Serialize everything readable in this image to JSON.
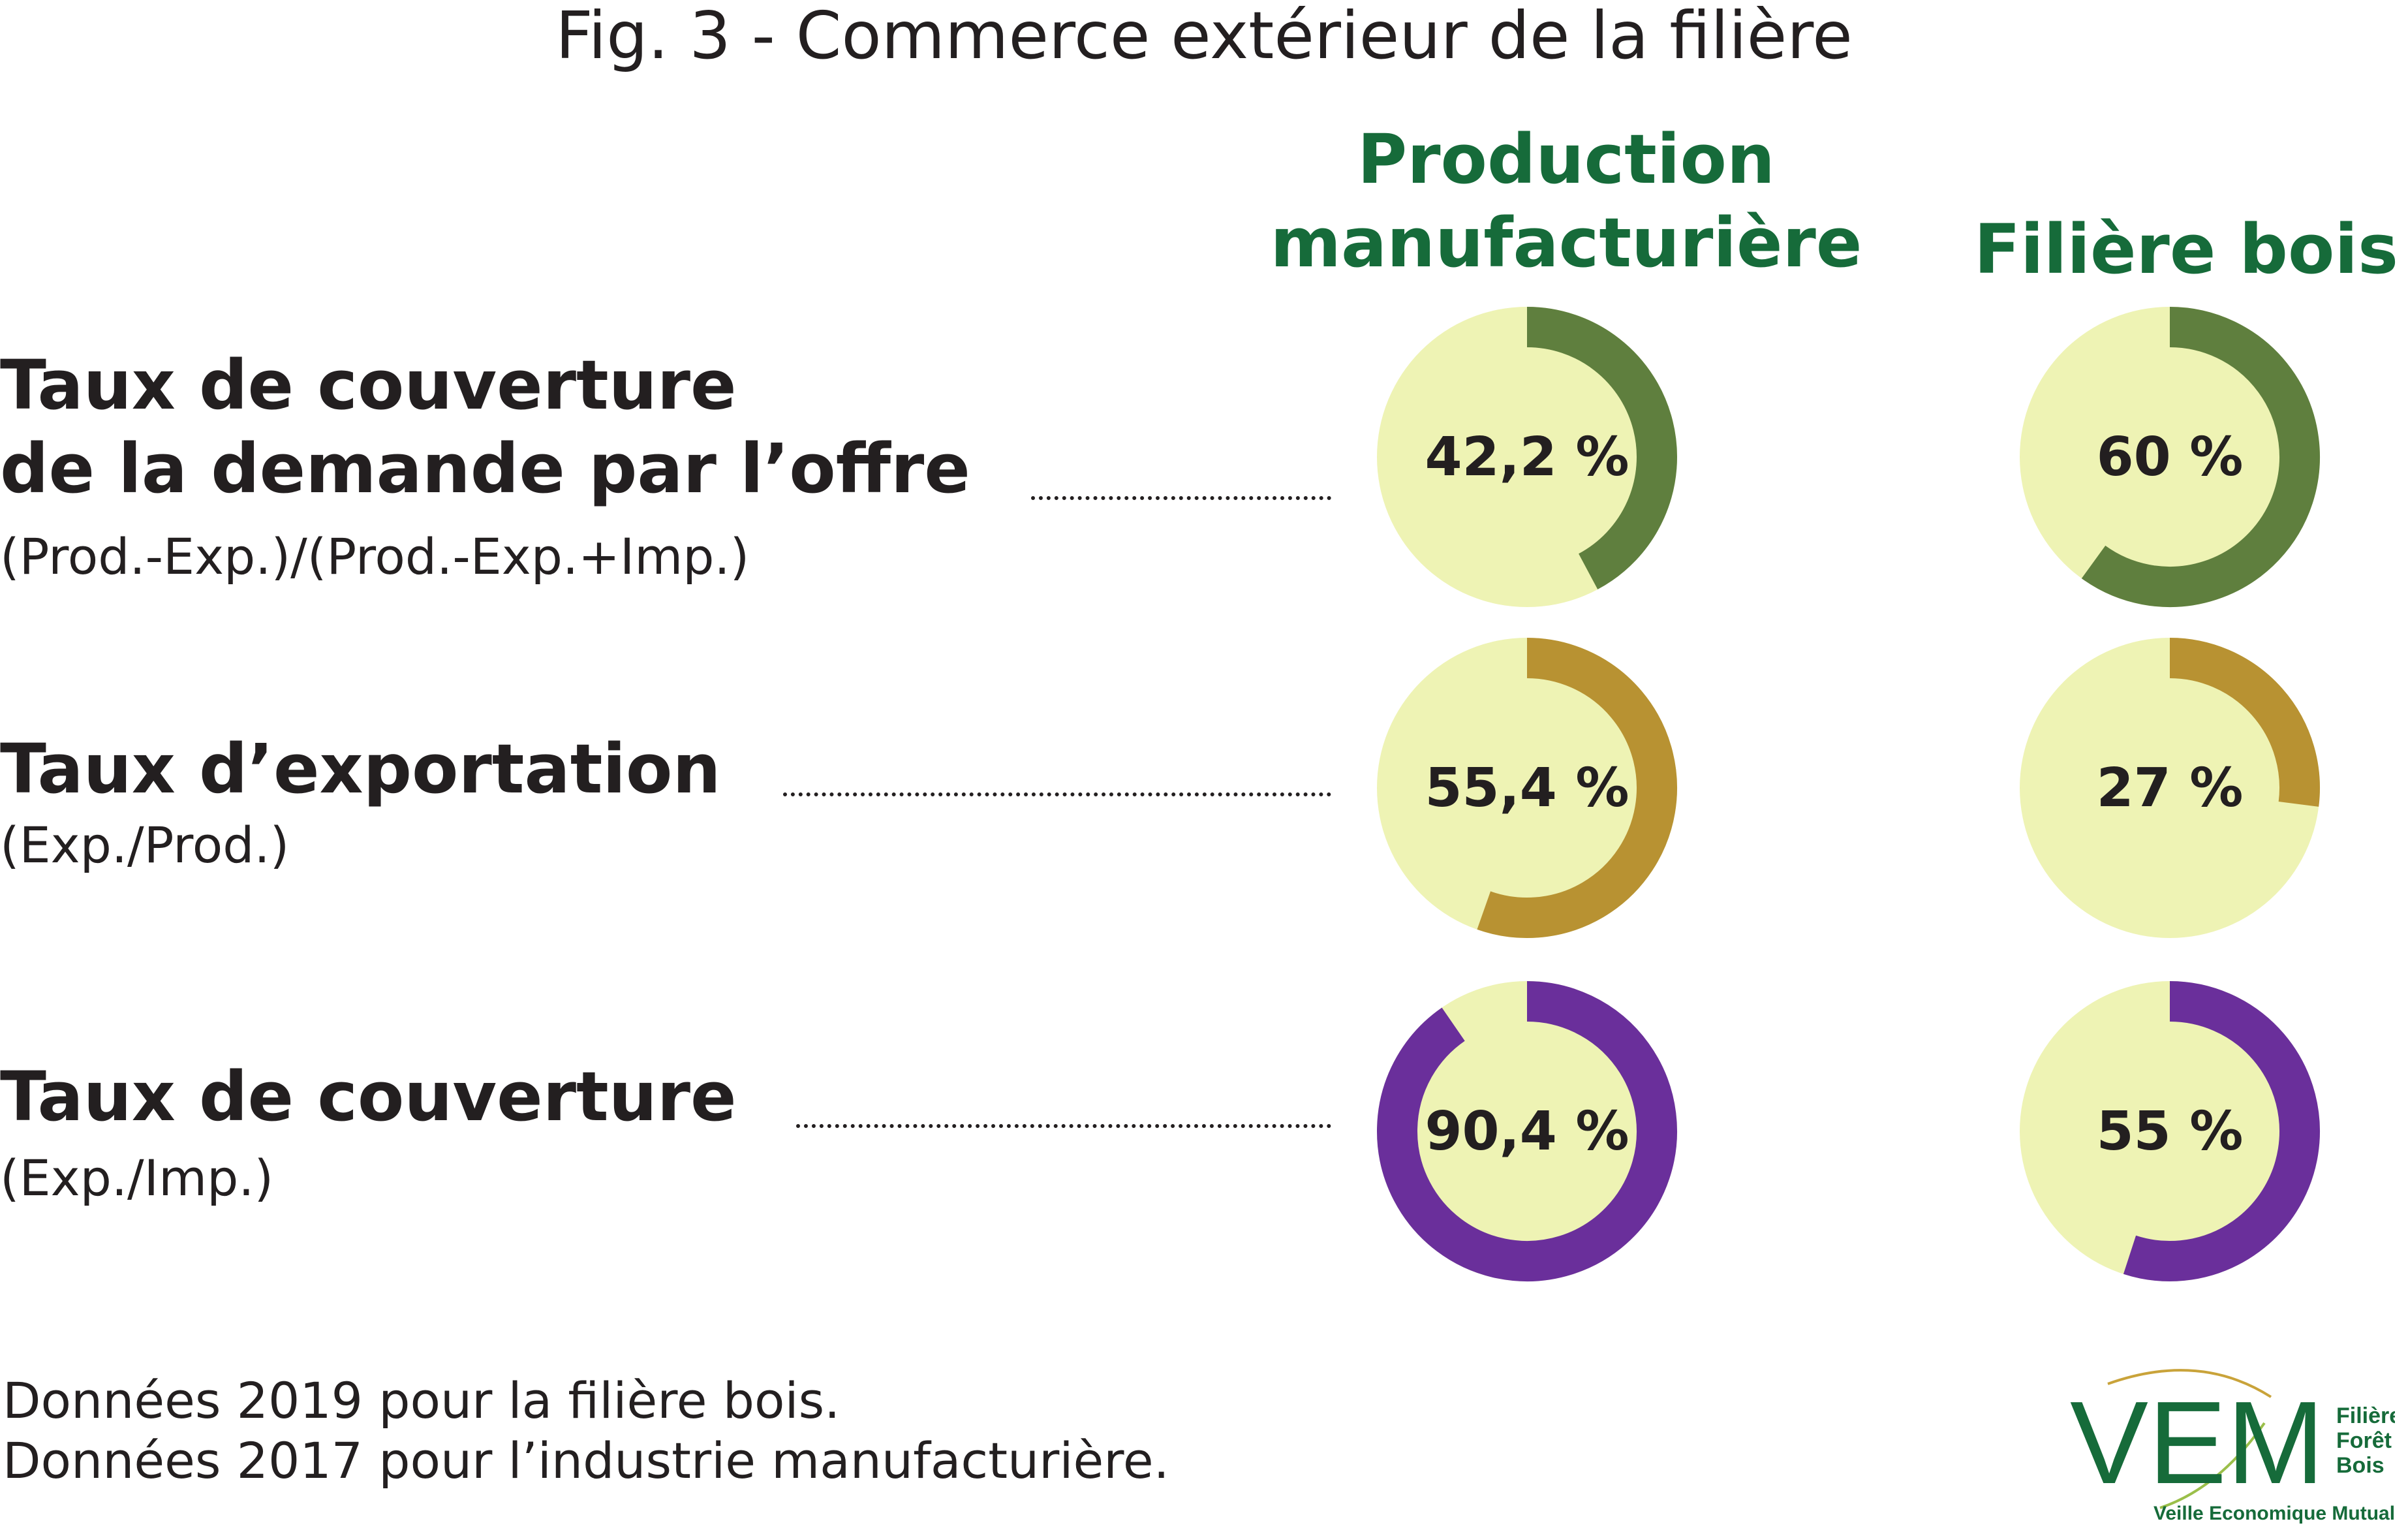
{
  "title": "Fig. 3 - Commerce extérieur de la filière",
  "columns": [
    {
      "line1": "Production",
      "line2": "manufacturière"
    },
    {
      "line1": "Filière bois",
      "line2": ""
    }
  ],
  "rows": [
    {
      "label_line1": "Taux de couverture",
      "label_line2": "de la demande par l’offre",
      "formula": "(Prod.-Exp.)/(Prod.-Exp.+Imp.)"
    },
    {
      "label_line1": "Taux d’exportation",
      "label_line2": "",
      "formula": "(Exp./Prod.)"
    },
    {
      "label_line1": "Taux de couverture",
      "label_line2": "",
      "formula": "(Exp./Imp.)"
    }
  ],
  "chart_data": {
    "type": "pie",
    "series": [
      {
        "name": "Production manufacturière",
        "values": [
          42.2,
          55.4,
          90.4
        ],
        "labels": [
          "42,2 %",
          "55,4 %",
          "90,4 %"
        ]
      },
      {
        "name": "Filière bois",
        "values": [
          60,
          27,
          55
        ],
        "labels": [
          "60 %",
          "27 %",
          "55 %"
        ]
      }
    ],
    "categories": [
      "Taux de couverture de la demande par l’offre",
      "Taux d’exportation",
      "Taux de couverture"
    ],
    "colors": {
      "track": "#eef3b4",
      "row1": "#5f7f3e",
      "row2": "#b89232",
      "row3": "#6a2f9b"
    }
  },
  "footnotes": [
    "Données 2019 pour la filière bois.",
    "Données 2017 pour l’industrie manufacturière."
  ],
  "logo": {
    "mark": "VEM",
    "side_line1": "Filière",
    "side_line2": "Forêt",
    "side_line3": "Bois",
    "tagline": "Veille Economique Mutualisée",
    "color": "#166b3a"
  }
}
